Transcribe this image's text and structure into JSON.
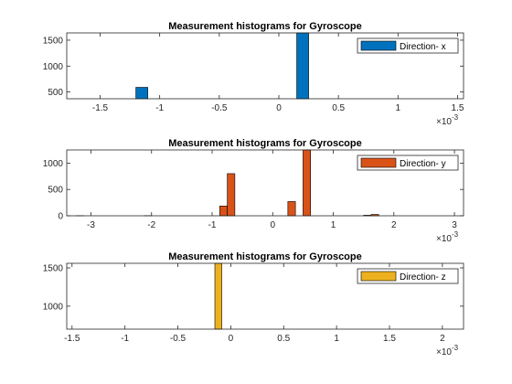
{
  "chart_data": [
    {
      "type": "bar",
      "title": "Measurement histograms for Gyroscope",
      "xlabel": "",
      "ylabel": "",
      "x_exponent": "×10^-3",
      "xlim": [
        -1.78,
        1.55
      ],
      "ylim": [
        370,
        1640
      ],
      "xticks": [
        -1.5,
        -1,
        -0.5,
        0,
        0.5,
        1,
        1.5
      ],
      "xtick_labels": [
        "-1.5",
        "-1",
        "-0.5",
        "0",
        "0.5",
        "1",
        "1.5"
      ],
      "yticks": [
        500,
        1000,
        1500
      ],
      "ytick_labels": [
        "500",
        "1000",
        "1500"
      ],
      "bin_width": 0.1,
      "bins": [
        {
          "start": -1.2,
          "count": 590
        },
        {
          "start": 0.15,
          "count": 1640
        }
      ],
      "color": "#0072BD",
      "legend": {
        "label": "Direction- x",
        "placement": "top-right"
      },
      "grid": false
    },
    {
      "type": "bar",
      "title": "Measurement histograms for Gyroscope",
      "xlabel": "",
      "ylabel": "",
      "x_exponent": "×10^-3",
      "xlim": [
        -3.4,
        3.15
      ],
      "ylim": [
        0,
        1250
      ],
      "xticks": [
        -3,
        -2,
        -1,
        0,
        1,
        2,
        3
      ],
      "xtick_labels": [
        "-3",
        "-2",
        "-1",
        "0",
        "1",
        "2",
        "3"
      ],
      "yticks": [
        0,
        500,
        1000
      ],
      "ytick_labels": [
        "0",
        "500",
        "1000"
      ],
      "bin_width": 0.125,
      "bins": [
        {
          "start": -3.25,
          "count": 3
        },
        {
          "start": -2.125,
          "count": 3
        },
        {
          "start": -0.875,
          "count": 185
        },
        {
          "start": -0.75,
          "count": 800
        },
        {
          "start": 0.25,
          "count": 270
        },
        {
          "start": 0.5,
          "count": 1250
        },
        {
          "start": 1.5,
          "count": 10
        },
        {
          "start": 1.625,
          "count": 25
        }
      ],
      "color": "#D95319",
      "legend": {
        "label": "Direction- y",
        "placement": "top-right"
      },
      "grid": false
    },
    {
      "type": "bar",
      "title": "Measurement histograms for Gyroscope",
      "xlabel": "",
      "ylabel": "",
      "x_exponent": "×10^-3",
      "xlim": [
        -1.55,
        2.2
      ],
      "ylim": [
        700,
        1560
      ],
      "xticks": [
        -1.5,
        -1,
        -0.5,
        0,
        0.5,
        1,
        1.5,
        2
      ],
      "xtick_labels": [
        "-1.5",
        "-1",
        "-0.5",
        "0",
        "0.5",
        "1",
        "1.5",
        "2"
      ],
      "yticks": [
        1000,
        1500
      ],
      "ytick_labels": [
        "1000",
        "1500"
      ],
      "bin_width": 0.065,
      "bins": [
        {
          "start": -0.15,
          "count": 1560
        }
      ],
      "color": "#EDB120",
      "legend": {
        "label": "Direction- z",
        "placement": "top-right"
      },
      "grid": false
    }
  ]
}
